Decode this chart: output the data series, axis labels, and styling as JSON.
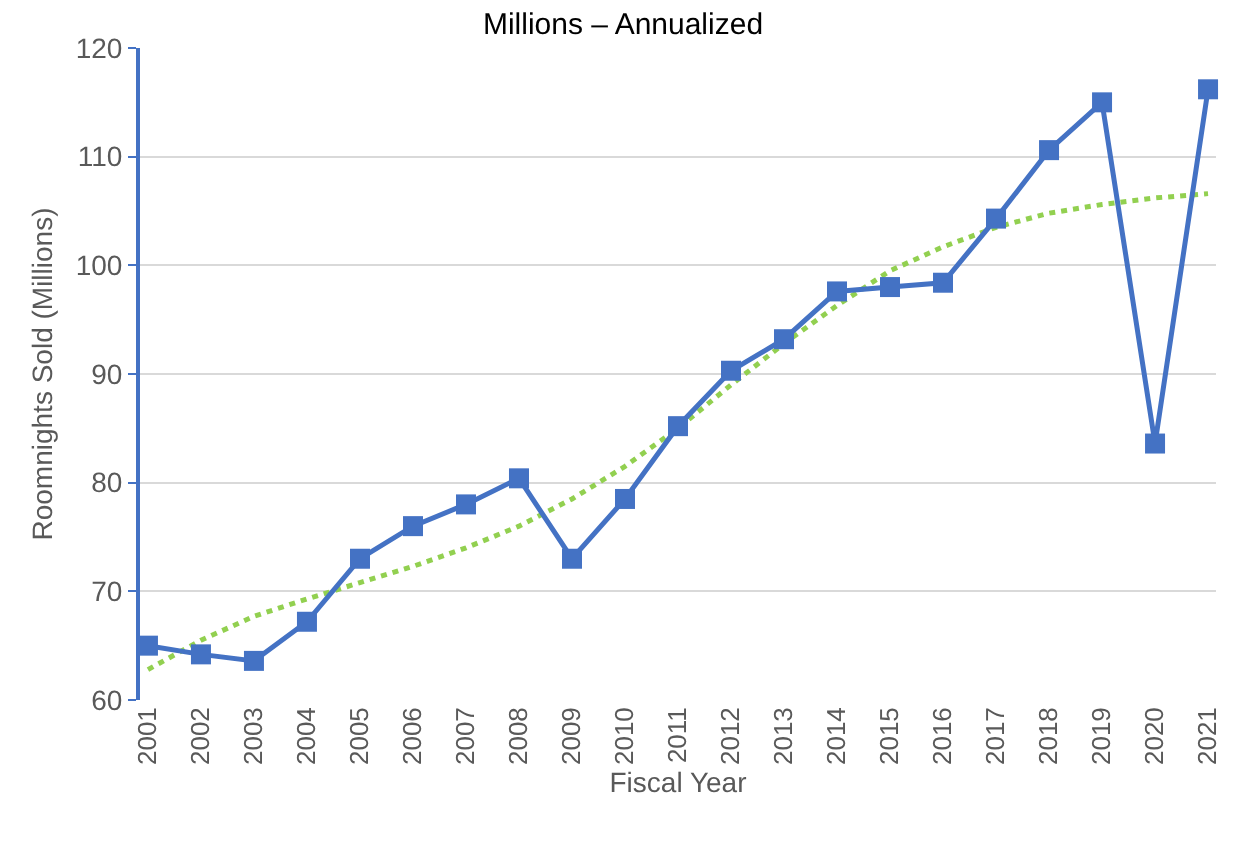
{
  "chart_data": {
    "type": "line",
    "title": "Millions – Annualized",
    "xlabel": "Fiscal Year",
    "ylabel": "Roomnights Sold (Millions)",
    "categories": [
      "2001",
      "2002",
      "2003",
      "2004",
      "2005",
      "2006",
      "2007",
      "2008",
      "2009",
      "2010",
      "2011",
      "2012",
      "2013",
      "2014",
      "2015",
      "2016",
      "2017",
      "2018",
      "2019",
      "2020",
      "2021"
    ],
    "series": [
      {
        "color": "#4472c4",
        "marker": "square",
        "line_style": "solid",
        "values": [
          65,
          64.2,
          63.6,
          67.2,
          73,
          76,
          78,
          80.4,
          73,
          78.5,
          85.2,
          90.3,
          93.2,
          97.6,
          98,
          98.4,
          104.3,
          110.6,
          115,
          83.6,
          116.2
        ]
      },
      {
        "color": "#92d050",
        "marker": "none",
        "line_style": "dotted",
        "values": [
          62.8,
          65.5,
          67.7,
          69.3,
          70.8,
          72.3,
          74,
          76,
          78.5,
          81.5,
          85,
          89,
          92.8,
          96.3,
          99.5,
          101.7,
          103.5,
          104.8,
          105.6,
          106.2,
          106.6
        ]
      }
    ],
    "ylim": [
      60,
      120
    ],
    "yticks": [
      60,
      70,
      80,
      90,
      100,
      110,
      120
    ],
    "grid": "y"
  }
}
